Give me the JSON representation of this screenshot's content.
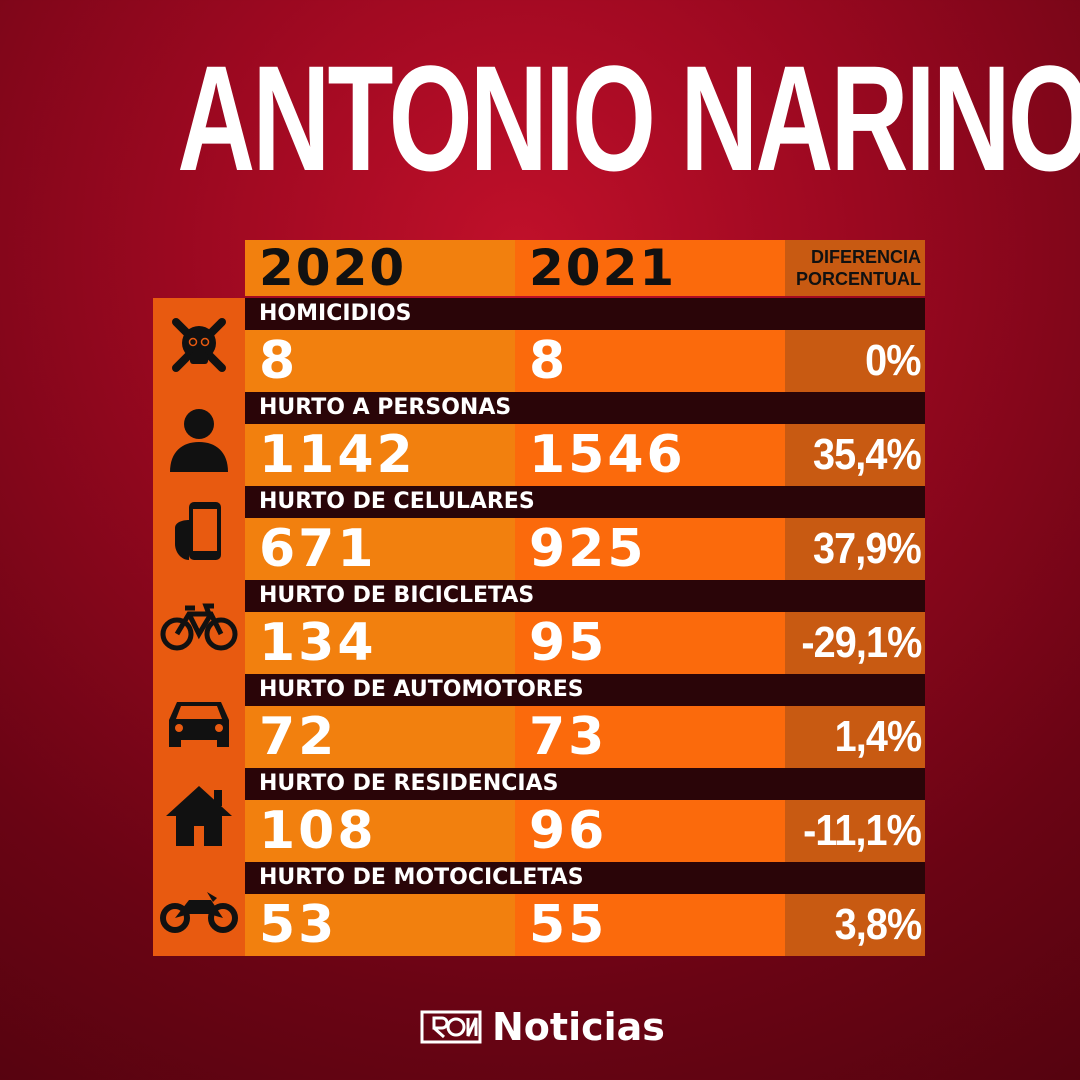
{
  "title": "ANTONIO NARINO",
  "headers": {
    "col1": "2020",
    "col2": "2021",
    "col3_line1": "DIFERENCIA",
    "col3_line2": "PORCENTUAL"
  },
  "rows": [
    {
      "label": "HOMICIDIOS",
      "icon": "skull-crossbones-icon",
      "v2020": "8",
      "v2021": "8",
      "diff": "0%"
    },
    {
      "label": "HURTO A PERSONAS",
      "icon": "person-icon",
      "v2020": "1142",
      "v2021": "1546",
      "diff": "35,4%"
    },
    {
      "label": "HURTO DE CELULARES",
      "icon": "phone-in-hand-icon",
      "v2020": "671",
      "v2021": "925",
      "diff": "37,9%"
    },
    {
      "label": "HURTO DE BICICLETAS",
      "icon": "bicycle-icon",
      "v2020": "134",
      "v2021": "95",
      "diff": "-29,1%"
    },
    {
      "label": "HURTO DE AUTOMOTORES",
      "icon": "car-icon",
      "v2020": "72",
      "v2021": "73",
      "diff": "1,4%"
    },
    {
      "label": "HURTO DE RESIDENCIAS",
      "icon": "house-icon",
      "v2020": "108",
      "v2021": "96",
      "diff": "-11,1%"
    },
    {
      "label": "HURTO DE MOTOCICLETAS",
      "icon": "motorcycle-icon",
      "v2020": "53",
      "v2021": "55",
      "diff": "3,8%"
    }
  ],
  "brand": {
    "name": "Noticias"
  },
  "colors": {
    "col2020": "#f2800e",
    "col2021": "#fb6a0c",
    "diff": "#c85a12",
    "label_bar": "#2a0508",
    "background": "#9a0820"
  },
  "chart_data": {
    "type": "table",
    "title": "ANTONIO NARINO",
    "columns": [
      "2020",
      "2021",
      "DIFERENCIA PORCENTUAL"
    ],
    "categories": [
      "HOMICIDIOS",
      "HURTO A PERSONAS",
      "HURTO DE CELULARES",
      "HURTO DE BICICLETAS",
      "HURTO DE AUTOMOTORES",
      "HURTO DE RESIDENCIAS",
      "HURTO DE MOTOCICLETAS"
    ],
    "series": [
      {
        "name": "2020",
        "values": [
          8,
          1142,
          671,
          134,
          72,
          108,
          53
        ]
      },
      {
        "name": "2021",
        "values": [
          8,
          1546,
          925,
          95,
          73,
          96,
          55
        ]
      },
      {
        "name": "DIFERENCIA PORCENTUAL",
        "values": [
          0,
          35.4,
          37.9,
          -29.1,
          1.4,
          -11.1,
          3.8
        ]
      }
    ]
  }
}
